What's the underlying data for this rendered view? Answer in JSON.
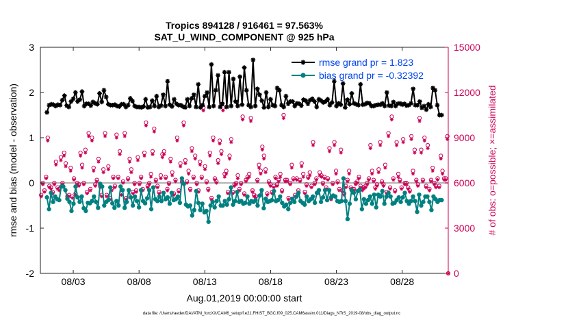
{
  "chart_data": {
    "type": "line",
    "title_line1": "Tropics 894128 / 916461 = 97.563%",
    "title_line2": "SAT_U_WIND_COMPONENT @ 925 hPa",
    "xlabel": "Aug.01,2019 00:00:00 start",
    "ylabel_left": "rmse and bias (model - observation)",
    "ylabel_right": "# of obs: o=possible; ×=assimilated",
    "footer": "data file: /Users/raeder/DAI/ATM_forcXX/CAM6_setup/f.e21.FHIST_BGC.f09_025.CAM6assim.011/Diags_NTrS_2019-08/obs_diag_output.nc",
    "x_range": [
      0.5,
      31.5
    ],
    "x_ticks": [
      {
        "x": 3,
        "label": "08/03"
      },
      {
        "x": 8,
        "label": "08/08"
      },
      {
        "x": 13,
        "label": "08/13"
      },
      {
        "x": 18,
        "label": "08/18"
      },
      {
        "x": 23,
        "label": "08/23"
      },
      {
        "x": 28,
        "label": "08/28"
      }
    ],
    "ylim_left": [
      -2,
      3
    ],
    "y_ticks_left": [
      -2,
      -1,
      0,
      1,
      2,
      3
    ],
    "ylim_right": [
      0,
      15000
    ],
    "y_ticks_right": [
      0,
      3000,
      6000,
      9000,
      12000,
      15000
    ],
    "colors": {
      "rmse": "#000000",
      "bias": "#008080",
      "obs": "#cc0055",
      "zero_line": "#b3b3b3",
      "legend_text": "#0044ee"
    },
    "series": [
      {
        "name": "rmse grand pr = 1.823",
        "axis": "left",
        "marker": "star",
        "values": [
          1.56,
          1.72,
          1.74,
          1.73,
          1.7,
          1.73,
          1.72,
          1.83,
          1.93,
          1.71,
          1.68,
          1.8,
          1.86,
          2.0,
          1.8,
          1.84,
          2.02,
          1.7,
          1.75,
          1.75,
          1.71,
          1.79,
          1.76,
          1.74,
          1.98,
          1.79,
          2.05,
          1.9,
          1.74,
          1.72,
          1.72,
          1.73,
          1.7,
          1.69,
          1.74,
          1.74,
          1.68,
          1.72,
          1.87,
          1.81,
          1.7,
          1.68,
          1.68,
          1.67,
          1.69,
          1.85,
          1.67,
          1.68,
          1.82,
          1.7,
          1.92,
          1.68,
          1.71,
          1.95,
          1.7,
          2.25,
          1.73,
          1.69,
          1.85,
          1.75,
          1.72,
          1.72,
          1.69,
          1.67,
          1.85,
          1.7,
          1.87,
          1.95,
          1.68,
          2.18,
          1.67,
          1.72,
          1.92,
          2.0,
          1.68,
          2.62,
          1.7,
          2.05,
          2.38,
          1.68,
          1.75,
          2.45,
          1.68,
          2.45,
          1.7,
          2.3,
          1.8,
          1.7,
          2.35,
          1.73,
          2.55,
          2.05,
          1.72,
          1.68,
          2.72,
          1.7,
          2.08,
          1.95,
          1.82,
          1.67,
          2.0,
          1.68,
          1.85,
          1.72,
          1.7,
          2.1,
          2.05,
          1.72,
          1.68,
          1.92,
          1.75,
          1.8,
          1.8,
          1.7,
          1.76,
          1.75,
          1.71,
          1.84,
          1.82,
          1.75,
          1.83,
          1.86,
          1.8,
          1.68,
          1.85,
          1.82,
          1.78,
          1.8,
          1.85,
          1.72,
          1.78,
          2.25,
          1.7,
          1.76,
          1.73,
          2.2,
          1.67,
          1.84,
          1.74,
          1.98,
          1.76,
          1.74,
          1.72,
          2.18,
          1.73,
          1.74,
          1.77,
          1.76,
          1.7,
          1.7,
          1.72,
          1.73,
          1.73,
          1.76,
          1.7,
          2.0,
          1.71,
          1.7,
          1.79,
          1.7,
          1.75,
          1.76,
          1.73,
          1.75,
          1.71,
          1.72,
          1.76,
          2.08,
          1.72,
          1.72,
          1.8,
          1.66,
          1.7,
          1.62,
          1.74,
          1.68,
          2.1,
          2.05,
          1.72,
          1.5,
          1.5
        ]
      },
      {
        "name": "bias grand pr = -0.32392",
        "axis": "left",
        "marker": "circle",
        "values": [
          -0.32,
          -0.58,
          -0.22,
          -0.42,
          -0.3,
          -0.36,
          -0.38,
          -0.08,
          -0.08,
          -0.16,
          -0.35,
          -0.42,
          -0.62,
          -0.46,
          -0.08,
          -0.32,
          -0.42,
          -0.3,
          -0.56,
          -0.62,
          -0.44,
          -0.45,
          -0.4,
          -0.3,
          -0.42,
          -0.55,
          -0.02,
          -0.08,
          -0.5,
          -0.42,
          -0.38,
          -0.1,
          -0.45,
          -0.55,
          -0.4,
          -0.5,
          -0.08,
          -0.16,
          -0.55,
          -0.42,
          -0.16,
          -0.32,
          -0.5,
          -0.3,
          -0.4,
          -0.54,
          -0.16,
          -0.4,
          -0.45,
          -0.34,
          -0.16,
          -0.58,
          -0.1,
          -0.36,
          -0.4,
          -0.3,
          -0.4,
          -0.22,
          -0.36,
          -0.32,
          -0.46,
          -0.22,
          -0.38,
          -0.36,
          -0.3,
          -0.44,
          0.1,
          -0.02,
          -0.48,
          -0.52,
          -0.5,
          -0.72,
          -0.6,
          -0.18,
          -0.44,
          -0.6,
          -0.46,
          -0.65,
          -0.62,
          -0.86,
          -0.5,
          -0.42,
          -0.54,
          -0.4,
          -0.3,
          -0.5,
          -0.5,
          -0.4,
          -0.48,
          -0.36,
          -0.1,
          -0.48,
          -0.4,
          -0.2,
          -0.42,
          -0.4,
          -0.46,
          -0.44,
          -0.3,
          -0.46,
          -0.4,
          -0.42,
          -0.38,
          -0.5,
          -0.28,
          -0.16,
          -0.56,
          -0.35,
          -0.42,
          -0.4,
          -0.38,
          -0.18,
          -0.4,
          -0.38,
          -0.3,
          -0.44,
          -0.52,
          -0.48,
          -0.58,
          -0.44,
          -0.35,
          -0.42,
          -0.3,
          -0.22,
          -0.4,
          -0.44,
          -0.48,
          -0.3,
          -0.4,
          -0.36,
          -0.3,
          -0.44,
          -0.22,
          -0.16,
          -0.42,
          -0.32,
          -0.16,
          -0.38,
          -0.16,
          -0.32,
          -0.28,
          -0.3,
          -0.4,
          -0.42,
          -0.4,
          0.1,
          -0.4,
          -0.8,
          -0.46,
          -0.16,
          -0.22,
          -0.36,
          -0.18,
          -0.14,
          -0.58,
          -0.36,
          -0.46,
          -0.38,
          -0.3,
          -0.46,
          -0.26,
          -0.54,
          -0.26,
          -0.3,
          -0.18,
          -0.46,
          -0.3,
          -0.22,
          -0.3,
          -0.46,
          -0.44,
          -0.38,
          -0.32,
          -0.42,
          -0.32,
          -0.22,
          -0.4,
          -0.46,
          -0.4,
          -0.3,
          -0.4,
          -0.64,
          -0.26,
          -0.5,
          -0.42,
          -0.3,
          -0.3,
          -0.42,
          -0.6,
          -0.3,
          -0.36,
          -0.42,
          -0.38,
          -0.38
        ]
      },
      {
        "name": "possible",
        "axis": "right",
        "marker": "open-circle",
        "values": [
          5200,
          6000,
          5500,
          6400,
          9000,
          5800,
          5700,
          5400,
          6000,
          7400,
          5700,
          5600,
          7700,
          6000,
          8000,
          7300,
          5100,
          5200,
          7000,
          5100,
          6300,
          5300,
          6000,
          5900,
          8000,
          7200,
          6000,
          8200,
          5400,
          9300,
          5600,
          9000,
          7000,
          5900,
          6200,
          7600,
          5800,
          5200,
          6900,
          9300,
          5200,
          7100,
          5000,
          5600,
          6400,
          5800,
          9200,
          6400,
          8100,
          5300,
          6100,
          9300,
          5000,
          6300,
          7600,
          6900,
          5400,
          6000,
          5500,
          7700,
          6000,
          6400,
          5600,
          8000,
          10000,
          5800,
          6000,
          6600,
          8100,
          9600,
          6200,
          5800,
          5400,
          6500,
          7900,
          8100,
          6400,
          5600,
          6000,
          7600,
          6700,
          5300,
          6200,
          9000,
          5500,
          7300,
          6100,
          10000,
          7500,
          6100,
          6800,
          5600,
          8300,
          6400,
          7800,
          6000,
          5500,
          7400,
          6400,
          11000,
          7100,
          6100,
          5600,
          8000,
          5000,
          9000,
          6300,
          6100,
          7500,
          8800,
          8100,
          11000,
          6600,
          6800,
          5400,
          7800,
          8900,
          5400,
          5900,
          6000,
          6500,
          5600,
          6000,
          10400,
          5300,
          6200,
          6400,
          6600,
          10300,
          5500,
          5200,
          5100,
          6200,
          7200,
          6800,
          8400,
          7800,
          6900,
          5300,
          6100,
          5900,
          5400,
          5800,
          6400,
          5900,
          6200,
          6600,
          5500,
          10500,
          6200,
          6200,
          5000,
          6000,
          7200,
          6300,
          5200,
          6300,
          5500,
          6200,
          7300,
          6600,
          5400,
          5900,
          6400,
          6700,
          5800,
          8700,
          6000,
          6300,
          5400,
          6700,
          6500,
          6000,
          6400,
          5700,
          6300,
          8300,
          5000,
          6000,
          8700,
          6800,
          6100,
          5600,
          8200,
          5500,
          5300,
          5800,
          6200,
          6800,
          5700,
          5600,
          5600,
          6000,
          6100,
          6400,
          5800,
          5600,
          5700,
          5800,
          6000,
          6300,
          8500,
          6800,
          6200,
          5700,
          5900,
          6900,
          8700,
          6100,
          5900,
          7200,
          5400,
          9300,
          5700,
          10400,
          6300,
          5500,
          8700,
          6600,
          6200,
          5700,
          8900,
          6000,
          6000,
          5700,
          5500,
          9100,
          6800,
          8200,
          6200,
          5900,
          10300,
          8200,
          6200,
          9000,
          5800,
          8500,
          5600,
          6200,
          7000,
          6000,
          5800,
          6300,
          5800,
          7800,
          6800,
          6300,
          6300,
          9100
        ]
      },
      {
        "name": "assimilated",
        "axis": "right",
        "marker": "star",
        "values": [
          5100,
          5900,
          5400,
          6300,
          8800,
          5700,
          5600,
          5300,
          5900,
          7200,
          5600,
          5500,
          7500,
          5900,
          7800,
          7100,
          5000,
          5100,
          6800,
          5000,
          6200,
          5200,
          5900,
          5800,
          7800,
          7000,
          5900,
          8000,
          5300,
          9100,
          5500,
          8800,
          6800,
          5800,
          6100,
          7400,
          5700,
          5100,
          6700,
          9100,
          5100,
          6900,
          4900,
          5500,
          6300,
          5700,
          9000,
          6300,
          7900,
          5200,
          6000,
          9100,
          4900,
          6200,
          7400,
          6700,
          5300,
          5900,
          5400,
          7500,
          5900,
          6300,
          5500,
          7800,
          9800,
          5700,
          5900,
          6400,
          7900,
          9400,
          6100,
          5700,
          5300,
          6300,
          7700,
          7900,
          6300,
          5500,
          5900,
          7400,
          6500,
          5200,
          6100,
          8800,
          5400,
          7100,
          6000,
          9800,
          7300,
          6000,
          6600,
          5500,
          8100,
          6300,
          7600,
          5900,
          5400,
          7200,
          6300,
          10800,
          6900,
          6000,
          5500,
          7800,
          4900,
          8800,
          6200,
          6000,
          7300,
          8600,
          7900,
          10800,
          6400,
          6600,
          5300,
          7600,
          8700,
          5300,
          5800,
          5900,
          6300,
          5500,
          5900,
          10200,
          5200,
          6100,
          6300,
          6400,
          10100,
          5400,
          5100,
          5000,
          6100,
          7000,
          6600,
          8200,
          7600,
          6700,
          5200,
          6000,
          5800,
          5300,
          5700,
          6300,
          5800,
          6100,
          6400,
          5400,
          10300,
          6100,
          6100,
          4900,
          5900,
          7000,
          6200,
          5100,
          6200,
          5400,
          6100,
          7100,
          6400,
          5300,
          5800,
          6300,
          6500,
          5700,
          8500,
          5900,
          6200,
          5300,
          6500,
          6400,
          5900,
          6300,
          5600,
          6200,
          8100,
          4900,
          5900,
          8500,
          6600,
          6000,
          5500,
          8000,
          5400,
          5200,
          5700,
          6100,
          6600,
          5600,
          5500,
          5500,
          5900,
          6000,
          6300,
          5700,
          5500,
          5600,
          5700,
          5900,
          6200,
          8300,
          6600,
          6100,
          5600,
          5800,
          6700,
          8500,
          6000,
          5800,
          7000,
          5300,
          9100,
          5600,
          10200,
          6200,
          5400,
          8500,
          6400,
          6100,
          5600,
          8700,
          5900,
          5900,
          5600,
          5400,
          8900,
          6600,
          8000,
          6100,
          5800,
          10100,
          8000,
          6100,
          8800,
          5700,
          8300,
          5500,
          6100,
          6800,
          5900,
          5700,
          6200,
          5700,
          7600,
          6600,
          6200,
          6200,
          8900
        ]
      }
    ],
    "legend_location": "top-right"
  }
}
